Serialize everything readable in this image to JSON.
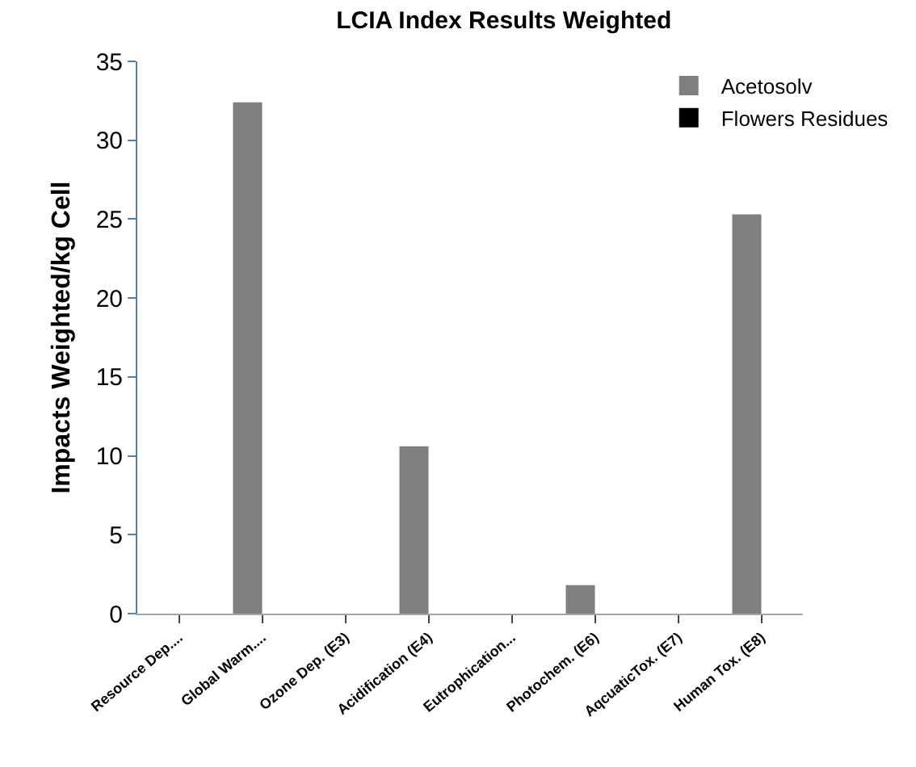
{
  "chart_data": {
    "type": "bar",
    "title": "LCIA Index Results Weighted",
    "ylabel": "Impacts Weighted/kg Cell",
    "categories": [
      "Resource Dep....",
      "Global Warm....",
      "Ozone Dep. (E3)",
      "Acidification (E4)",
      "Eutrophication...",
      "Photochem. (E6)",
      "AqcuaticTox. (E7)",
      "Human Tox. (E8)"
    ],
    "series": [
      {
        "name": "Acetosolv",
        "color": "#7f7f7f",
        "values": [
          0,
          32.4,
          0,
          10.6,
          0,
          1.8,
          0,
          25.3
        ]
      },
      {
        "name": "Flowers Residues",
        "color": "#000000",
        "values": [
          0,
          0,
          0,
          0,
          0,
          0,
          0,
          0
        ]
      }
    ],
    "ylim": [
      0,
      35
    ],
    "yticks": [
      0,
      5,
      10,
      15,
      20,
      25,
      30,
      35
    ],
    "grid": false,
    "legend": "top right"
  }
}
